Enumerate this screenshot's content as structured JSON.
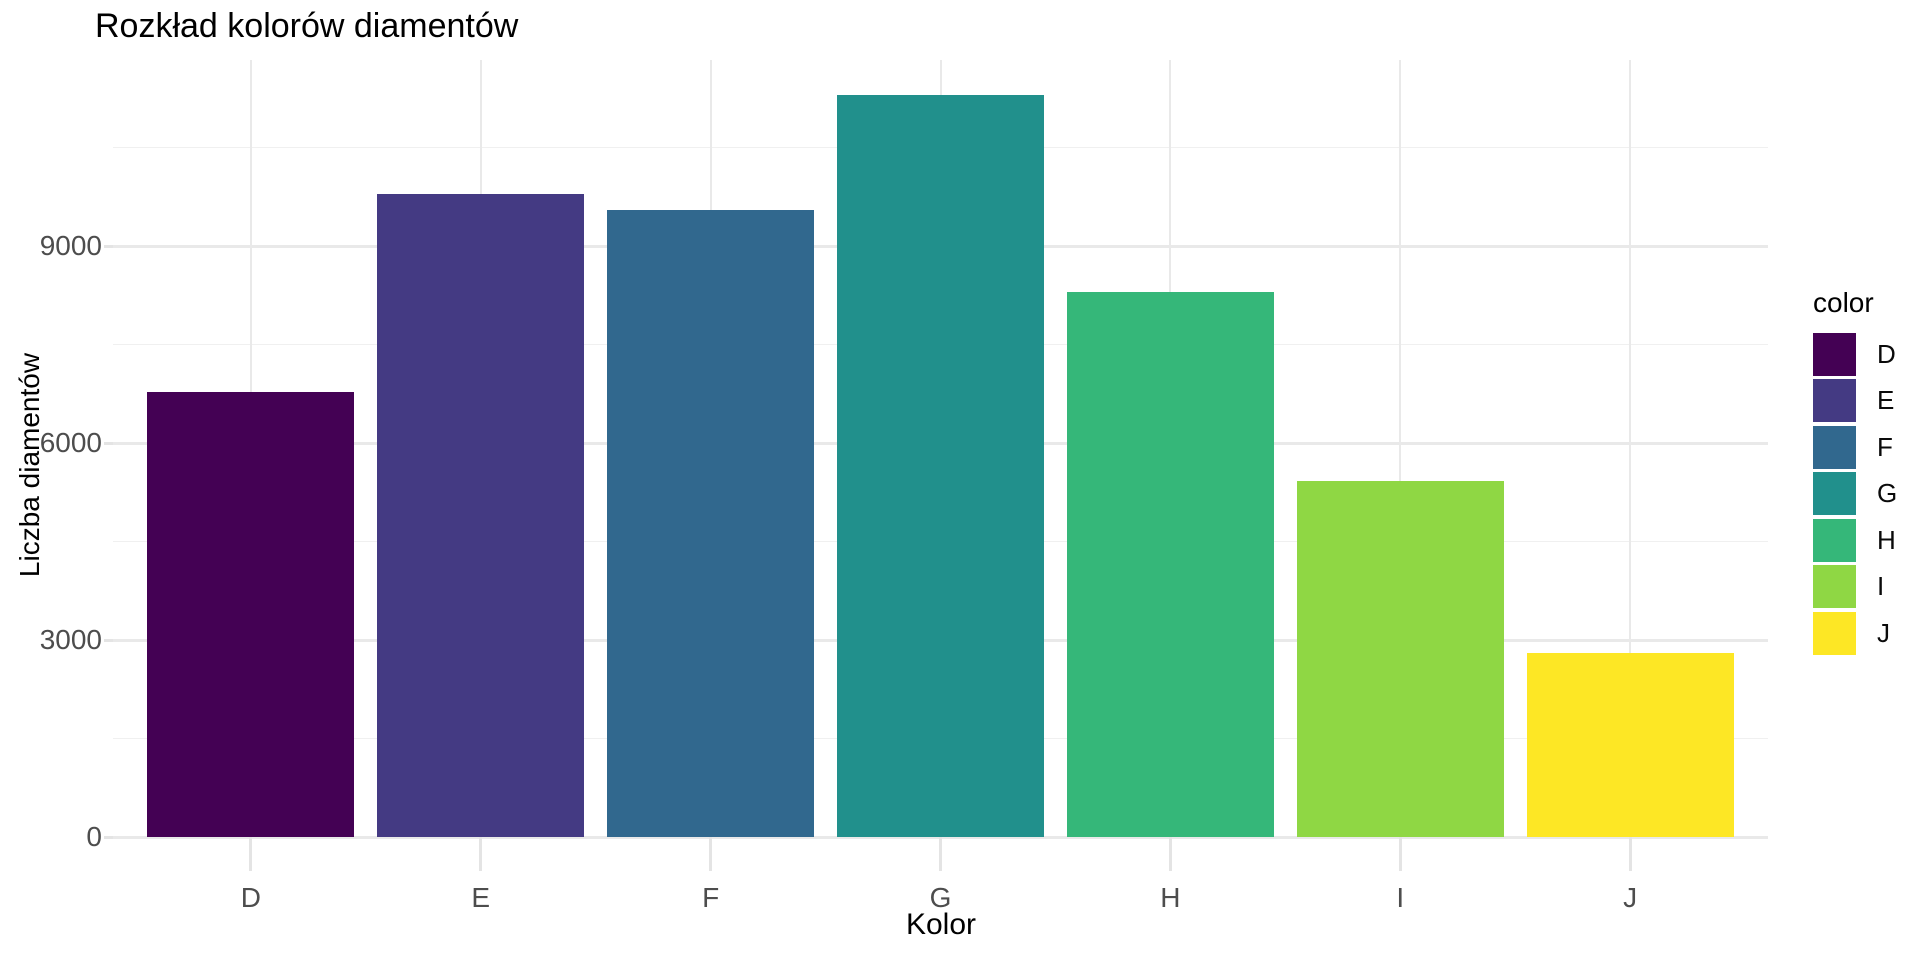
{
  "chart_data": {
    "type": "bar",
    "title": "Rozkład kolorów diamentów",
    "xlabel": "Kolor",
    "ylabel": "Liczba diamentów",
    "categories": [
      "D",
      "E",
      "F",
      "G",
      "H",
      "I",
      "J"
    ],
    "values": [
      6775,
      9797,
      9542,
      11292,
      8304,
      5422,
      2808
    ],
    "bar_colors": [
      "#440154",
      "#443A83",
      "#31688E",
      "#21908C",
      "#35B779",
      "#8FD744",
      "#FDE725"
    ],
    "y_axis": {
      "ticks": [
        0,
        3000,
        6000,
        9000
      ],
      "tick_labels": [
        "0",
        "3000",
        "6000",
        "9000"
      ],
      "minor_ticks": [
        1500,
        4500,
        7500,
        10500
      ],
      "range": [
        0,
        11860
      ]
    },
    "grid": "horizontal major + minor, vertical major at category centers, light gray on white",
    "legend": {
      "title": "color",
      "position": "right",
      "entries": [
        {
          "label": "D",
          "color": "#440154"
        },
        {
          "label": "E",
          "color": "#443A83"
        },
        {
          "label": "F",
          "color": "#31688E"
        },
        {
          "label": "G",
          "color": "#21908C"
        },
        {
          "label": "H",
          "color": "#35B779"
        },
        {
          "label": "I",
          "color": "#8FD744"
        },
        {
          "label": "J",
          "color": "#FDE725"
        }
      ]
    }
  },
  "colors": {
    "background": "#FFFFFF",
    "grid_major": "#E9E9E9",
    "grid_minor": "#F0F0F0",
    "tick_mark": "#E4E4E4",
    "tick_label": "#4D4D4D",
    "title_text": "#000000"
  }
}
